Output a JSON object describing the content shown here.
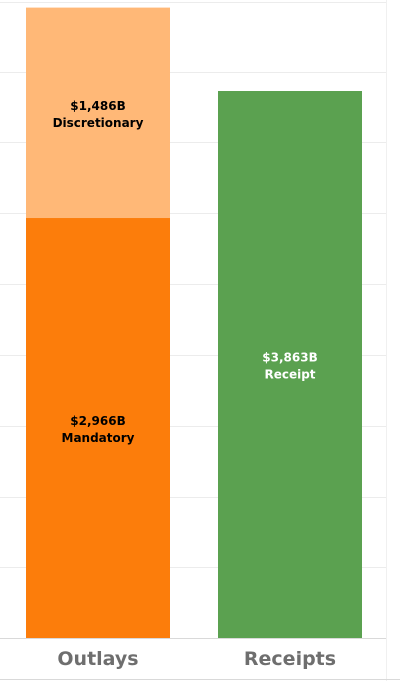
{
  "chart_data": {
    "type": "bar",
    "stacked": true,
    "categories": [
      "Outlays",
      "Receipts"
    ],
    "ylim": [
      0,
      4500
    ],
    "grid": true,
    "bars": [
      {
        "category": "Outlays",
        "segments": [
          {
            "name": "Mandatory",
            "value": 2966,
            "value_label": "$2,966B",
            "color": "#fc7d0b"
          },
          {
            "name": "Discretionary",
            "value": 1486,
            "value_label": "$1,486B",
            "color": "#ffb877"
          }
        ]
      },
      {
        "category": "Receipts",
        "segments": [
          {
            "name": "Receipt",
            "value": 3863,
            "value_label": "$3,863B",
            "color": "#5ba150"
          }
        ]
      }
    ],
    "colors": {
      "label_dark": "#000000",
      "label_light": "#ffffff",
      "gridline": "#ececec",
      "axis_label": "#6e6e6e"
    }
  }
}
